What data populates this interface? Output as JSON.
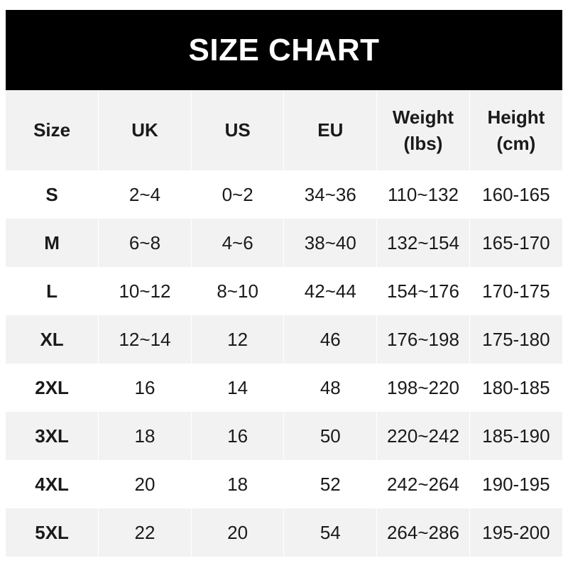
{
  "title": "SIZE CHART",
  "headers": [
    [
      "Size"
    ],
    [
      "UK"
    ],
    [
      "US"
    ],
    [
      "EU"
    ],
    [
      "Weight",
      "(lbs)"
    ],
    [
      "Height",
      "(cm)"
    ]
  ],
  "rows": [
    [
      "S",
      "2~4",
      "0~2",
      "34~36",
      "110~132",
      "160-165"
    ],
    [
      "M",
      "6~8",
      "4~6",
      "38~40",
      "132~154",
      "165-170"
    ],
    [
      "L",
      "10~12",
      "8~10",
      "42~44",
      "154~176",
      "170-175"
    ],
    [
      "XL",
      "12~14",
      "12",
      "46",
      "176~198",
      "175-180"
    ],
    [
      "2XL",
      "16",
      "14",
      "48",
      "198~220",
      "180-185"
    ],
    [
      "3XL",
      "18",
      "16",
      "50",
      "220~242",
      "185-190"
    ],
    [
      "4XL",
      "20",
      "18",
      "52",
      "242~264",
      "190-195"
    ],
    [
      "5XL",
      "22",
      "20",
      "54",
      "264~286",
      "195-200"
    ]
  ],
  "colors": {
    "banner": "#000000",
    "stripe": "#f2f2f2"
  }
}
